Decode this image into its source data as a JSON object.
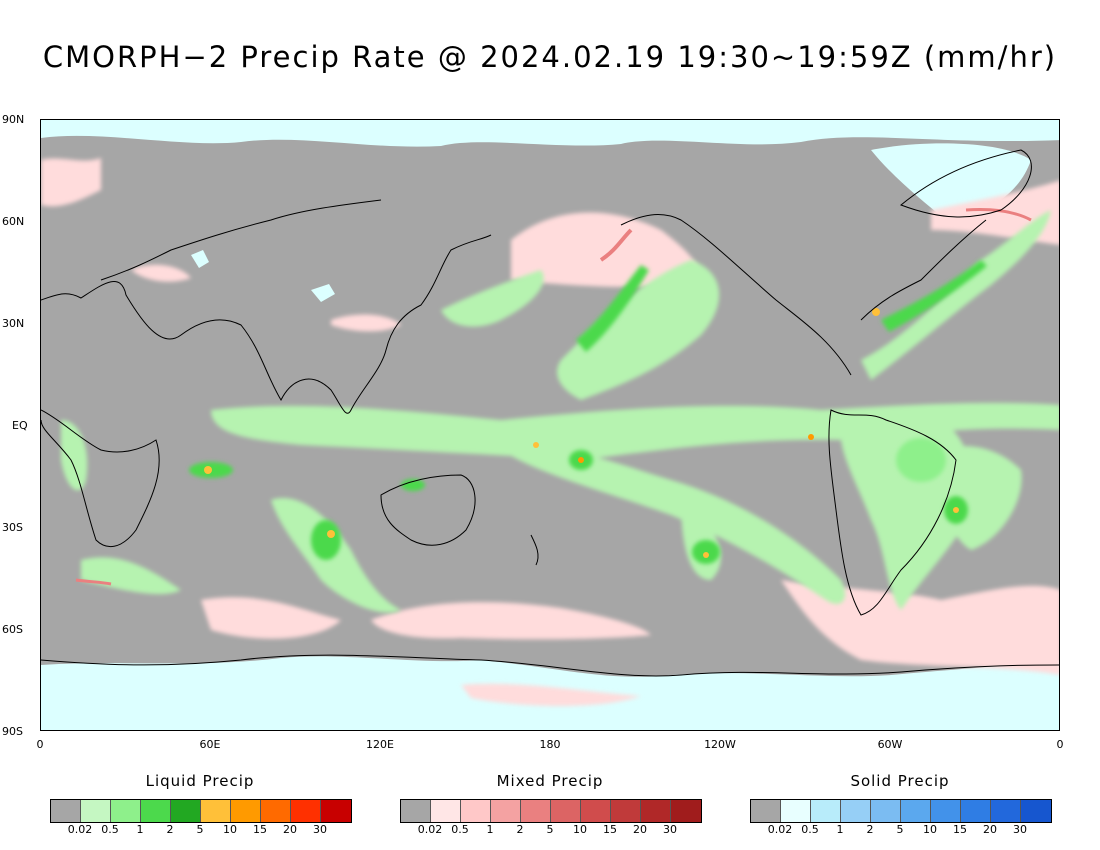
{
  "title": "CMORPH−2 Precip Rate @ 2024.02.19 19:30~19:59Z (mm/hr)",
  "lat_labels": [
    "90N",
    "60N",
    "30N",
    "EQ",
    "30S",
    "60S",
    "90S"
  ],
  "lon_labels": [
    "0",
    "60E",
    "120E",
    "180",
    "120W",
    "60W",
    "0"
  ],
  "legends": [
    {
      "title": "Liquid Precip",
      "colors": [
        "#a6a6a6",
        "#c5f7c2",
        "#8ef08b",
        "#4cd94c",
        "#22a822",
        "#ffc039",
        "#ff9a00",
        "#ff6a00",
        "#ff3000",
        "#c80000"
      ],
      "ticks": [
        "0.02",
        "0.5",
        "1",
        "2",
        "5",
        "10",
        "15",
        "20",
        "30"
      ]
    },
    {
      "title": "Mixed Precip",
      "colors": [
        "#a6a6a6",
        "#ffe6e6",
        "#ffc8c8",
        "#f4a2a2",
        "#ea8080",
        "#dc6464",
        "#d04c4c",
        "#c03a3a",
        "#b02828",
        "#a01c1c"
      ],
      "ticks": [
        "0.02",
        "0.5",
        "1",
        "2",
        "5",
        "10",
        "15",
        "20",
        "30"
      ]
    },
    {
      "title": "Solid Precip",
      "colors": [
        "#a6a6a6",
        "#e8ffff",
        "#b8ecfa",
        "#96cff6",
        "#7bbcf2",
        "#5ba8ee",
        "#4292ea",
        "#2f7de4",
        "#2268dc",
        "#1656cf"
      ],
      "ticks": [
        "0.02",
        "0.5",
        "1",
        "2",
        "5",
        "10",
        "15",
        "20",
        "30"
      ]
    }
  ],
  "map": {
    "background_color": "#a6a6a6",
    "coastline_color": "#000000"
  }
}
